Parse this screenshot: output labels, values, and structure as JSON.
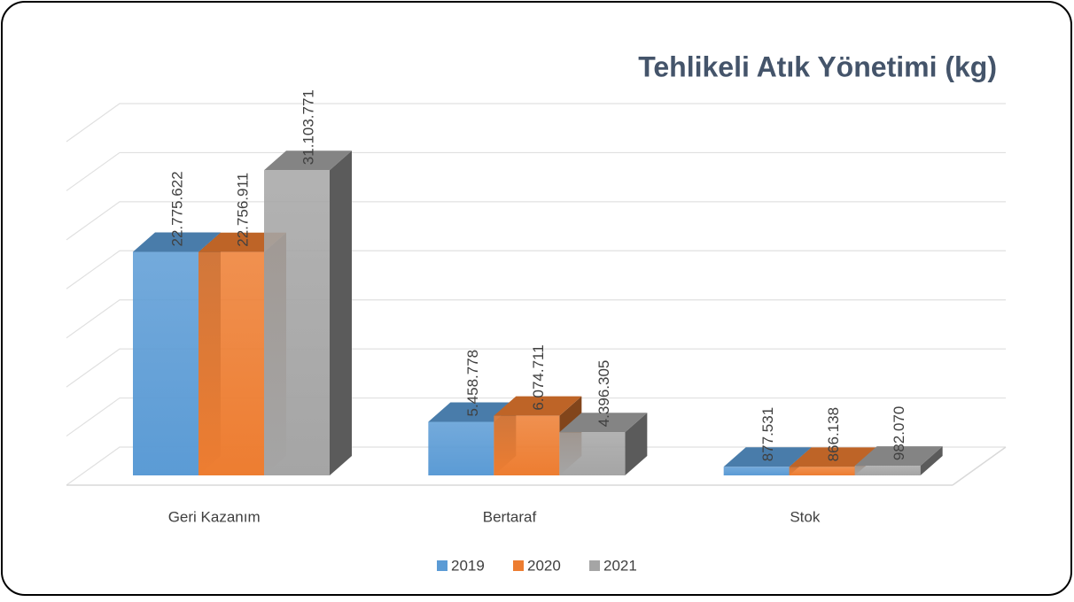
{
  "chart_data": {
    "type": "bar3d",
    "title": "Tehlikeli Atık Yönetimi (kg)",
    "categories": [
      "Geri Kazanım",
      "Bertaraf",
      "Stok"
    ],
    "series": [
      {
        "name": "2019",
        "color": "#5b9bd5",
        "values": [
          22775622,
          5458778,
          877531
        ],
        "value_labels": [
          "22.775.622",
          "5.458.778",
          "877.531"
        ]
      },
      {
        "name": "2020",
        "color": "#ed7d31",
        "values": [
          22756911,
          6074711,
          866138
        ],
        "value_labels": [
          "22.756.911",
          "6.074.711",
          "866.138"
        ]
      },
      {
        "name": "2021",
        "color": "#a5a5a5",
        "values": [
          31103771,
          4396305,
          982070
        ],
        "value_labels": [
          "31.103.771",
          "4.396.305",
          "982.070"
        ]
      }
    ],
    "ylim": [
      0,
      35000000
    ],
    "yticks": [
      0,
      5000000,
      10000000,
      15000000,
      20000000,
      25000000,
      30000000,
      35000000
    ],
    "grid": true,
    "legend": "bottom"
  }
}
